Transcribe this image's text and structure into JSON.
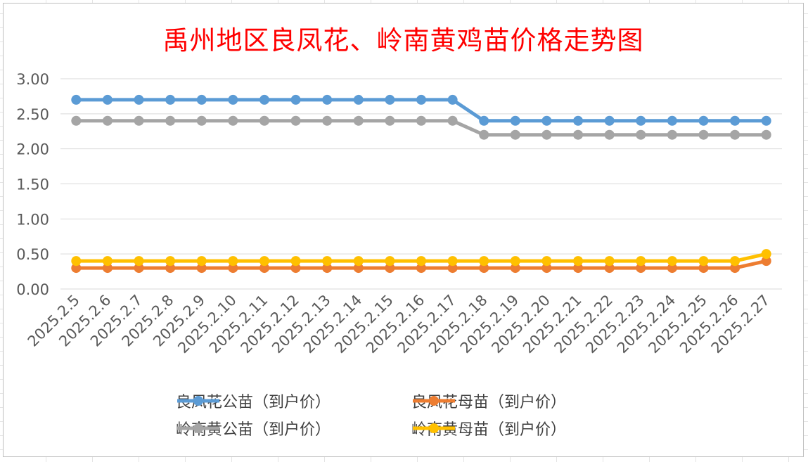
{
  "chart_data": {
    "type": "line",
    "title": "禹州地区良凤花、岭南黄鸡苗价格走势图",
    "categories": [
      "2025.2.5",
      "2025.2.6",
      "2025.2.7",
      "2025.2.8",
      "2025.2.9",
      "2025.2.10",
      "2025.2.11",
      "2025.2.12",
      "2025.2.13",
      "2025.2.14",
      "2025.2.15",
      "2025.2.16",
      "2025.2.17",
      "2025.2.18",
      "2025.2.19",
      "2025.2.20",
      "2025.2.21",
      "2025.2.22",
      "2025.2.23",
      "2025.2.24",
      "2025.2.25",
      "2025.2.26",
      "2025.2.27"
    ],
    "ylim": [
      0,
      3
    ],
    "yticks": [
      "0.00",
      "0.50",
      "1.00",
      "1.50",
      "2.00",
      "2.50",
      "3.00"
    ],
    "grid": true,
    "legend_position": "bottom",
    "series": [
      {
        "name": "良凤花公苗（到户价）",
        "color": "#5b9bd5",
        "values": [
          2.7,
          2.7,
          2.7,
          2.7,
          2.7,
          2.7,
          2.7,
          2.7,
          2.7,
          2.7,
          2.7,
          2.7,
          2.7,
          2.4,
          2.4,
          2.4,
          2.4,
          2.4,
          2.4,
          2.4,
          2.4,
          2.4,
          2.4
        ]
      },
      {
        "name": "良凤花母苗（到户价）",
        "color": "#ed7d31",
        "values": [
          0.3,
          0.3,
          0.3,
          0.3,
          0.3,
          0.3,
          0.3,
          0.3,
          0.3,
          0.3,
          0.3,
          0.3,
          0.3,
          0.3,
          0.3,
          0.3,
          0.3,
          0.3,
          0.3,
          0.3,
          0.3,
          0.3,
          0.4
        ]
      },
      {
        "name": "岭南黄公苗（到户价）",
        "color": "#a5a5a5",
        "values": [
          2.4,
          2.4,
          2.4,
          2.4,
          2.4,
          2.4,
          2.4,
          2.4,
          2.4,
          2.4,
          2.4,
          2.4,
          2.4,
          2.2,
          2.2,
          2.2,
          2.2,
          2.2,
          2.2,
          2.2,
          2.2,
          2.2,
          2.2
        ]
      },
      {
        "name": "岭南黄母苗（到户价）",
        "color": "#ffc000",
        "values": [
          0.4,
          0.4,
          0.4,
          0.4,
          0.4,
          0.4,
          0.4,
          0.4,
          0.4,
          0.4,
          0.4,
          0.4,
          0.4,
          0.4,
          0.4,
          0.4,
          0.4,
          0.4,
          0.4,
          0.4,
          0.4,
          0.4,
          0.5
        ]
      }
    ]
  }
}
